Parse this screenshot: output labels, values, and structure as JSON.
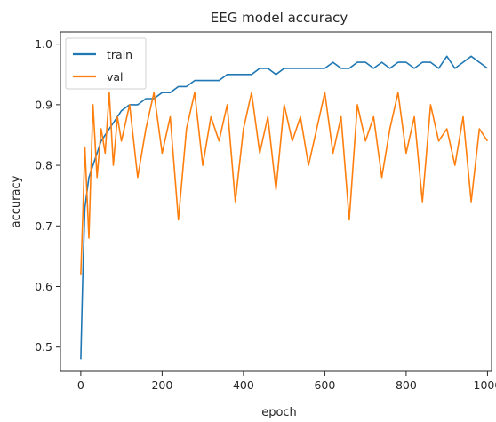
{
  "chart_data": {
    "type": "line",
    "title": "EEG model accuracy",
    "xlabel": "epoch",
    "ylabel": "accuracy",
    "xlim": [
      -50,
      1010
    ],
    "ylim": [
      0.46,
      1.02
    ],
    "x_ticks": [
      0,
      200,
      400,
      600,
      800,
      1000
    ],
    "y_ticks": [
      0.5,
      0.6,
      0.7,
      0.8,
      0.9,
      1.0
    ],
    "x_tick_labels": [
      "0",
      "200",
      "400",
      "600",
      "800",
      "1000"
    ],
    "y_tick_labels": [
      "0.5",
      "0.6",
      "0.7",
      "0.8",
      "0.9",
      "1.0"
    ],
    "grid": false,
    "legend_position": "upper-left",
    "x": [
      0,
      5,
      10,
      20,
      30,
      40,
      50,
      60,
      70,
      80,
      90,
      100,
      120,
      140,
      160,
      180,
      200,
      220,
      240,
      260,
      280,
      300,
      320,
      340,
      360,
      380,
      400,
      420,
      440,
      460,
      480,
      500,
      520,
      540,
      560,
      580,
      600,
      620,
      640,
      660,
      680,
      700,
      720,
      740,
      760,
      780,
      800,
      820,
      840,
      860,
      880,
      900,
      920,
      940,
      960,
      980,
      1000
    ],
    "series": [
      {
        "name": "train",
        "color": "#1f77b4",
        "values": [
          0.48,
          0.62,
          0.73,
          0.78,
          0.8,
          0.82,
          0.84,
          0.85,
          0.86,
          0.87,
          0.88,
          0.89,
          0.9,
          0.9,
          0.91,
          0.91,
          0.92,
          0.92,
          0.93,
          0.93,
          0.94,
          0.94,
          0.94,
          0.94,
          0.95,
          0.95,
          0.95,
          0.95,
          0.96,
          0.96,
          0.95,
          0.96,
          0.96,
          0.96,
          0.96,
          0.96,
          0.96,
          0.97,
          0.96,
          0.96,
          0.97,
          0.97,
          0.96,
          0.97,
          0.96,
          0.97,
          0.97,
          0.96,
          0.97,
          0.97,
          0.96,
          0.98,
          0.96,
          0.97,
          0.98,
          0.97,
          0.96
        ]
      },
      {
        "name": "val",
        "color": "#ff7f0e",
        "values": [
          0.62,
          0.72,
          0.83,
          0.68,
          0.9,
          0.78,
          0.86,
          0.82,
          0.92,
          0.8,
          0.88,
          0.84,
          0.9,
          0.78,
          0.86,
          0.92,
          0.82,
          0.88,
          0.71,
          0.86,
          0.92,
          0.8,
          0.88,
          0.84,
          0.9,
          0.74,
          0.86,
          0.92,
          0.82,
          0.88,
          0.76,
          0.9,
          0.84,
          0.88,
          0.8,
          0.86,
          0.92,
          0.82,
          0.88,
          0.71,
          0.9,
          0.84,
          0.88,
          0.78,
          0.86,
          0.92,
          0.82,
          0.88,
          0.74,
          0.9,
          0.84,
          0.86,
          0.8,
          0.88,
          0.74,
          0.86,
          0.84
        ]
      }
    ]
  }
}
